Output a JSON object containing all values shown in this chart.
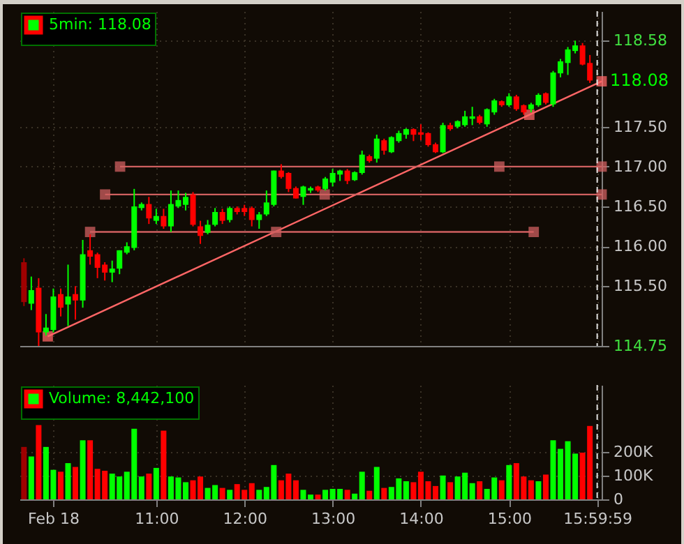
{
  "chart_data": [
    {
      "type": "candlestick",
      "x": [
        9.5,
        9.5833,
        9.6667,
        9.75,
        9.8333,
        9.9167,
        10,
        10.0833,
        10.1667,
        10.25,
        10.3333,
        10.4167,
        10.5,
        10.5833,
        10.6667,
        10.75,
        10.8333,
        10.9167,
        11,
        11.0833,
        11.1667,
        11.25,
        11.3333,
        11.4167,
        11.5,
        11.5833,
        11.6667,
        11.75,
        11.8333,
        11.9167,
        12,
        12.0833,
        12.1667,
        12.25,
        12.3333,
        12.4167,
        12.5,
        12.5833,
        12.6667,
        12.75,
        12.8333,
        12.9167,
        13,
        13.0833,
        13.1667,
        13.25,
        13.3333,
        13.4167,
        13.5,
        13.5833,
        13.6667,
        13.75,
        13.8333,
        13.9167,
        14,
        14.0833,
        14.1667,
        14.25,
        14.3333,
        14.4167,
        14.5,
        14.5833,
        14.6667,
        14.75,
        14.8333,
        14.9167,
        15,
        15.0833,
        15.1667,
        15.25,
        15.3333,
        15.4167,
        15.5,
        15.5833,
        15.6667,
        15.75,
        15.8333,
        15.9167
      ],
      "series": [
        {
          "name": "5min: 118.08",
          "type": "candlestick",
          "ohlc": [
            [
              115.8,
              115.85,
              115.25,
              115.3
            ],
            [
              115.28,
              115.62,
              115.2,
              115.45
            ],
            [
              115.48,
              115.6,
              114.75,
              114.92
            ],
            [
              114.92,
              115.15,
              114.88,
              114.98
            ],
            [
              114.95,
              115.47,
              114.92,
              115.37
            ],
            [
              115.4,
              115.47,
              115.12,
              115.23
            ],
            [
              115.27,
              115.77,
              115.0,
              115.37
            ],
            [
              115.4,
              115.5,
              115.08,
              115.32
            ],
            [
              115.32,
              116.08,
              115.23,
              115.9
            ],
            [
              115.95,
              116.15,
              115.77,
              115.87
            ],
            [
              115.9,
              115.92,
              115.6,
              115.73
            ],
            [
              115.77,
              115.8,
              115.57,
              115.67
            ],
            [
              115.67,
              115.82,
              115.55,
              115.72
            ],
            [
              115.72,
              115.95,
              115.65,
              115.95
            ],
            [
              115.92,
              116.05,
              115.9,
              116.0
            ],
            [
              115.98,
              116.72,
              115.95,
              116.5
            ],
            [
              116.48,
              116.55,
              116.45,
              116.53
            ],
            [
              116.53,
              116.62,
              116.28,
              116.35
            ],
            [
              116.32,
              116.47,
              116.28,
              116.38
            ],
            [
              116.38,
              116.47,
              116.22,
              116.25
            ],
            [
              116.25,
              116.7,
              116.18,
              116.53
            ],
            [
              116.5,
              116.7,
              116.48,
              116.58
            ],
            [
              116.52,
              116.67,
              116.45,
              116.62
            ],
            [
              116.65,
              116.68,
              116.25,
              116.27
            ],
            [
              116.25,
              116.32,
              116.03,
              116.13
            ],
            [
              116.17,
              116.33,
              116.15,
              116.27
            ],
            [
              116.27,
              116.48,
              116.25,
              116.43
            ],
            [
              116.43,
              116.47,
              116.28,
              116.32
            ],
            [
              116.33,
              116.5,
              116.3,
              116.48
            ],
            [
              116.48,
              116.5,
              116.4,
              116.43
            ],
            [
              116.48,
              116.52,
              116.38,
              116.43
            ],
            [
              116.48,
              116.5,
              116.25,
              116.33
            ],
            [
              116.33,
              116.43,
              116.22,
              116.4
            ],
            [
              116.4,
              116.7,
              116.38,
              116.55
            ],
            [
              116.52,
              116.95,
              116.5,
              116.95
            ],
            [
              116.95,
              117.03,
              116.85,
              116.87
            ],
            [
              116.92,
              116.93,
              116.68,
              116.72
            ],
            [
              116.73,
              116.75,
              116.6,
              116.6
            ],
            [
              116.62,
              116.76,
              116.52,
              116.75
            ],
            [
              116.7,
              116.75,
              116.67,
              116.73
            ],
            [
              116.75,
              116.76,
              116.68,
              116.7
            ],
            [
              116.72,
              116.87,
              116.7,
              116.85
            ],
            [
              116.8,
              116.97,
              116.75,
              116.92
            ],
            [
              116.9,
              116.96,
              116.82,
              116.95
            ],
            [
              116.95,
              116.97,
              116.78,
              116.82
            ],
            [
              116.83,
              116.94,
              116.82,
              116.93
            ],
            [
              116.92,
              117.2,
              116.9,
              117.15
            ],
            [
              117.13,
              117.15,
              117.05,
              117.07
            ],
            [
              117.1,
              117.4,
              117.05,
              117.35
            ],
            [
              117.33,
              117.35,
              117.15,
              117.2
            ],
            [
              117.18,
              117.38,
              117.17,
              117.37
            ],
            [
              117.32,
              117.45,
              117.3,
              117.42
            ],
            [
              117.4,
              117.48,
              117.35,
              117.47
            ],
            [
              117.47,
              117.48,
              117.32,
              117.4
            ],
            [
              117.43,
              117.53,
              117.33,
              117.4
            ],
            [
              117.42,
              117.43,
              117.25,
              117.27
            ],
            [
              117.28,
              117.3,
              117.17,
              117.18
            ],
            [
              117.18,
              117.55,
              117.17,
              117.52
            ],
            [
              117.52,
              117.55,
              117.45,
              117.47
            ],
            [
              117.5,
              117.58,
              117.48,
              117.57
            ],
            [
              117.52,
              117.7,
              117.5,
              117.63
            ],
            [
              117.6,
              117.75,
              117.52,
              117.63
            ],
            [
              117.63,
              117.65,
              117.53,
              117.55
            ],
            [
              117.53,
              117.73,
              117.5,
              117.72
            ],
            [
              117.68,
              117.85,
              117.65,
              117.83
            ],
            [
              117.82,
              117.83,
              117.75,
              117.77
            ],
            [
              117.77,
              117.92,
              117.75,
              117.88
            ],
            [
              117.88,
              117.9,
              117.7,
              117.72
            ],
            [
              117.77,
              117.78,
              117.65,
              117.68
            ],
            [
              117.72,
              117.8,
              117.68,
              117.78
            ],
            [
              117.77,
              117.92,
              117.75,
              117.9
            ],
            [
              117.92,
              117.93,
              117.78,
              117.8
            ],
            [
              117.78,
              118.2,
              117.75,
              118.18
            ],
            [
              118.17,
              118.35,
              118.12,
              118.32
            ],
            [
              118.3,
              118.5,
              118.15,
              118.47
            ],
            [
              118.45,
              118.58,
              118.42,
              118.52
            ],
            [
              118.52,
              118.55,
              118.27,
              118.28
            ],
            [
              118.3,
              118.4,
              118.05,
              118.08
            ]
          ],
          "colors": [
            "#a00000",
            "#00ff00",
            "#ff0000",
            "#00ff00",
            "#00ff00",
            "#ff0000",
            "#00ff00",
            "#ff0000",
            "#00ff00",
            "#ff0000",
            "#ff0000",
            "#ff0000",
            "#00ff00",
            "#00ff00",
            "#00ff00",
            "#00ff00",
            "#00ff00",
            "#ff0000",
            "#00ff00",
            "#ff0000",
            "#00ff00",
            "#00ff00",
            "#00ff00",
            "#ff0000",
            "#ff0000",
            "#00ff00",
            "#00ff00",
            "#ff0000",
            "#00ff00",
            "#ff0000",
            "#ff0000",
            "#ff0000",
            "#00ff00",
            "#00ff00",
            "#00ff00",
            "#ff0000",
            "#ff0000",
            "#ff0000",
            "#00ff00",
            "#00ff00",
            "#ff0000",
            "#00ff00",
            "#00ff00",
            "#00ff00",
            "#ff0000",
            "#00ff00",
            "#00ff00",
            "#ff0000",
            "#00ff00",
            "#ff0000",
            "#00ff00",
            "#00ff00",
            "#00ff00",
            "#ff0000",
            "#ff0000",
            "#ff0000",
            "#ff0000",
            "#00ff00",
            "#ff0000",
            "#00ff00",
            "#00ff00",
            "#00ff00",
            "#ff0000",
            "#00ff00",
            "#00ff00",
            "#ff0000",
            "#00ff00",
            "#ff0000",
            "#ff0000",
            "#00ff00",
            "#00ff00",
            "#ff0000",
            "#00ff00",
            "#00ff00",
            "#00ff00",
            "#00ff00",
            "#ff0000",
            "#ff0000"
          ]
        },
        {
          "type": "line",
          "color": "#ff6666",
          "x": [
            9.77,
            15.23,
            16.05
          ],
          "values": [
            114.87,
            117.65,
            118.07
          ]
        },
        {
          "type": "line",
          "color": "#d06060",
          "x": [
            10.59,
            14.89,
            16.05
          ],
          "values": [
            117,
            117,
            117
          ]
        },
        {
          "type": "line",
          "color": "#d06060",
          "x": [
            10.42,
            12.91,
            16.05
          ],
          "values": [
            116.65,
            116.65,
            116.65
          ]
        },
        {
          "type": "line",
          "color": "#d06060",
          "x": [
            10.25,
            12.36,
            15.28
          ],
          "values": [
            116.18,
            116.18,
            116.18
          ]
        }
      ],
      "marker": "square",
      "xlim": [
        9.45,
        16.05
      ],
      "xticks": [
        9.83,
        11,
        12,
        13,
        14,
        15,
        15.9997
      ],
      "ylim": [
        114.75,
        118.95
      ],
      "yticks": [
        {
          "value": 114.75,
          "label": "114.75"
        },
        {
          "value": 115.5,
          "label": "115.50"
        },
        {
          "value": 116,
          "label": "116.00"
        },
        {
          "value": 116.5,
          "label": "116.50"
        },
        {
          "value": 117,
          "label": "117.00"
        },
        {
          "value": 117.5,
          "label": "117.50"
        },
        {
          "value": 118.58,
          "label": "118.58"
        }
      ],
      "tick_labels": "y",
      "grid": true,
      "legend": "top left",
      "ref_lines": [
        {
          "axis": "x",
          "value": 15.9997,
          "line_style": "dashed",
          "color": "#e0e0e0"
        }
      ],
      "annotations": [
        {
          "text": "118.08",
          "x": 16.05,
          "y": 118.08
        }
      ]
    },
    {
      "type": "bar",
      "x": [
        9.5,
        9.5833,
        9.6667,
        9.75,
        9.8333,
        9.9167,
        10,
        10.0833,
        10.1667,
        10.25,
        10.3333,
        10.4167,
        10.5,
        10.5833,
        10.6667,
        10.75,
        10.8333,
        10.9167,
        11,
        11.0833,
        11.1667,
        11.25,
        11.3333,
        11.4167,
        11.5,
        11.5833,
        11.6667,
        11.75,
        11.8333,
        11.9167,
        12,
        12.0833,
        12.1667,
        12.25,
        12.3333,
        12.4167,
        12.5,
        12.5833,
        12.6667,
        12.75,
        12.8333,
        12.9167,
        13,
        13.0833,
        13.1667,
        13.25,
        13.3333,
        13.4167,
        13.5,
        13.5833,
        13.6667,
        13.75,
        13.8333,
        13.9167,
        14,
        14.0833,
        14.1667,
        14.25,
        14.3333,
        14.4167,
        14.5,
        14.5833,
        14.6667,
        14.75,
        14.8333,
        14.9167,
        15,
        15.0833,
        15.1667,
        15.25,
        15.3333,
        15.4167,
        15.5,
        15.5833,
        15.6667,
        15.75,
        15.8333,
        15.9167
      ],
      "series": [
        {
          "name": "Volume: 8,442,100",
          "values": [
            220000,
            180000,
            312000,
            220000,
            124000,
            116000,
            152000,
            136000,
            248000,
            248000,
            128000,
            120000,
            108000,
            96000,
            116000,
            296000,
            96000,
            108000,
            132000,
            288000,
            96000,
            92000,
            72000,
            80000,
            96000,
            48000,
            60000,
            48000,
            40000,
            64000,
            40000,
            68000,
            40000,
            52000,
            144000,
            80000,
            108000,
            80000,
            40000,
            20000,
            20000,
            40000,
            44000,
            44000,
            40000,
            24000,
            116000,
            36000,
            136000,
            48000,
            52000,
            88000,
            76000,
            72000,
            116000,
            76000,
            56000,
            100000,
            72000,
            96000,
            112000,
            68000,
            76000,
            44000,
            92000,
            80000,
            144000,
            152000,
            96000,
            80000,
            76000,
            104000,
            248000,
            212000,
            244000,
            192000,
            196000,
            308000
          ],
          "colors": [
            "#a00000",
            "#00ff00",
            "#ff0000",
            "#00ff00",
            "#00ff00",
            "#ff0000",
            "#00ff00",
            "#ff0000",
            "#00ff00",
            "#ff0000",
            "#ff0000",
            "#ff0000",
            "#00ff00",
            "#00ff00",
            "#00ff00",
            "#00ff00",
            "#00ff00",
            "#ff0000",
            "#00ff00",
            "#ff0000",
            "#00ff00",
            "#00ff00",
            "#00ff00",
            "#ff0000",
            "#ff0000",
            "#00ff00",
            "#00ff00",
            "#ff0000",
            "#00ff00",
            "#ff0000",
            "#ff0000",
            "#ff0000",
            "#00ff00",
            "#00ff00",
            "#00ff00",
            "#ff0000",
            "#ff0000",
            "#ff0000",
            "#00ff00",
            "#00ff00",
            "#ff0000",
            "#00ff00",
            "#00ff00",
            "#00ff00",
            "#ff0000",
            "#00ff00",
            "#00ff00",
            "#ff0000",
            "#00ff00",
            "#ff0000",
            "#00ff00",
            "#00ff00",
            "#00ff00",
            "#ff0000",
            "#ff0000",
            "#ff0000",
            "#ff0000",
            "#00ff00",
            "#ff0000",
            "#00ff00",
            "#00ff00",
            "#00ff00",
            "#ff0000",
            "#00ff00",
            "#00ff00",
            "#ff0000",
            "#00ff00",
            "#ff0000",
            "#ff0000",
            "#ff0000",
            "#00ff00",
            "#ff0000",
            "#00ff00",
            "#00ff00",
            "#00ff00",
            "#00ff00",
            "#ff0000",
            "#ff0000"
          ]
        }
      ],
      "xlim": [
        9.45,
        16.05
      ],
      "xticks": [
        {
          "value": 9.83,
          "label": "Feb 18"
        },
        {
          "value": 11,
          "label": "11:00"
        },
        {
          "value": 12,
          "label": "12:00"
        },
        {
          "value": 13,
          "label": "13:00"
        },
        {
          "value": 14,
          "label": "14:00"
        },
        {
          "value": 15,
          "label": "15:00"
        },
        {
          "value": 15.9997,
          "label": "15:59:59"
        }
      ],
      "ylim": [
        0,
        480000
      ],
      "yticks": [
        0,
        {
          "value": 100000,
          "label": "100K"
        },
        {
          "value": 200000,
          "label": "200K"
        }
      ],
      "grid": true,
      "legend": "top left",
      "ref_lines": [
        {
          "axis": "x",
          "value": 15.9997,
          "line_style": "dashed",
          "color": "#e0e0e0"
        }
      ]
    }
  ]
}
